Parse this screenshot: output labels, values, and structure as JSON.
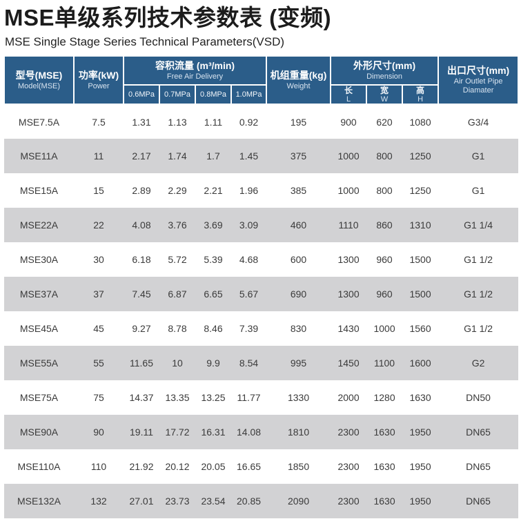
{
  "page": {
    "title": "MSE单级系列技术参数表 (变频)",
    "subtitle": "MSE Single Stage Series Technical Parameters(VSD)"
  },
  "table": {
    "header": {
      "model_cn": "型号(MSE)",
      "model_en": "Model(MSE)",
      "power_cn": "功率(kW)",
      "power_en": "Power",
      "fad_cn": "容积流量 (m³/min)",
      "fad_en": "Free Air Delivery",
      "fad_pressures": [
        "0.6MPa",
        "0.7MPa",
        "0.8MPa",
        "1.0MPa"
      ],
      "weight_cn": "机组重量(kg)",
      "weight_en": "Weight",
      "dim_cn": "外形尺寸(mm)",
      "dim_en": "Dimension",
      "dim_subs": [
        {
          "cn": "长",
          "en": "L"
        },
        {
          "cn": "宽",
          "en": "W"
        },
        {
          "cn": "高",
          "en": "H"
        }
      ],
      "outlet_cn": "出口尺寸(mm)",
      "outlet_en": "Air Outlet Pipe Diamater"
    },
    "rows": [
      {
        "model": "MSE7.5A",
        "power": "7.5",
        "fad": [
          "1.31",
          "1.13",
          "1.11",
          "0.92"
        ],
        "weight": "195",
        "dim": [
          "900",
          "620",
          "1080"
        ],
        "outlet": "G3/4"
      },
      {
        "model": "MSE11A",
        "power": "11",
        "fad": [
          "2.17",
          "1.74",
          "1.7",
          "1.45"
        ],
        "weight": "375",
        "dim": [
          "1000",
          "800",
          "1250"
        ],
        "outlet": "G1"
      },
      {
        "model": "MSE15A",
        "power": "15",
        "fad": [
          "2.89",
          "2.29",
          "2.21",
          "1.96"
        ],
        "weight": "385",
        "dim": [
          "1000",
          "800",
          "1250"
        ],
        "outlet": "G1"
      },
      {
        "model": "MSE22A",
        "power": "22",
        "fad": [
          "4.08",
          "3.76",
          "3.69",
          "3.09"
        ],
        "weight": "460",
        "dim": [
          "1110",
          "860",
          "1310"
        ],
        "outlet": "G1 1/4"
      },
      {
        "model": "MSE30A",
        "power": "30",
        "fad": [
          "6.18",
          "5.72",
          "5.39",
          "4.68"
        ],
        "weight": "600",
        "dim": [
          "1300",
          "960",
          "1500"
        ],
        "outlet": "G1 1/2"
      },
      {
        "model": "MSE37A",
        "power": "37",
        "fad": [
          "7.45",
          "6.87",
          "6.65",
          "5.67"
        ],
        "weight": "690",
        "dim": [
          "1300",
          "960",
          "1500"
        ],
        "outlet": "G1 1/2"
      },
      {
        "model": "MSE45A",
        "power": "45",
        "fad": [
          "9.27",
          "8.78",
          "8.46",
          "7.39"
        ],
        "weight": "830",
        "dim": [
          "1430",
          "1000",
          "1560"
        ],
        "outlet": "G1 1/2"
      },
      {
        "model": "MSE55A",
        "power": "55",
        "fad": [
          "11.65",
          "10",
          "9.9",
          "8.54"
        ],
        "weight": "995",
        "dim": [
          "1450",
          "1100",
          "1600"
        ],
        "outlet": "G2"
      },
      {
        "model": "MSE75A",
        "power": "75",
        "fad": [
          "14.37",
          "13.35",
          "13.25",
          "11.77"
        ],
        "weight": "1330",
        "dim": [
          "2000",
          "1280",
          "1630"
        ],
        "outlet": "DN50"
      },
      {
        "model": "MSE90A",
        "power": "90",
        "fad": [
          "19.11",
          "17.72",
          "16.31",
          "14.08"
        ],
        "weight": "1810",
        "dim": [
          "2300",
          "1630",
          "1950"
        ],
        "outlet": "DN65"
      },
      {
        "model": "MSE110A",
        "power": "110",
        "fad": [
          "21.92",
          "20.12",
          "20.05",
          "16.65"
        ],
        "weight": "1850",
        "dim": [
          "2300",
          "1630",
          "1950"
        ],
        "outlet": "DN65"
      },
      {
        "model": "MSE132A",
        "power": "132",
        "fad": [
          "27.01",
          "23.73",
          "23.54",
          "20.85"
        ],
        "weight": "2090",
        "dim": [
          "2300",
          "1630",
          "1950"
        ],
        "outlet": "DN65"
      }
    ]
  },
  "colors": {
    "header_bg": "#2b5d89",
    "alt_row_bg": "#d2d2d4",
    "title_text": "#1c1c1c",
    "body_text": "#3a3a3a"
  }
}
